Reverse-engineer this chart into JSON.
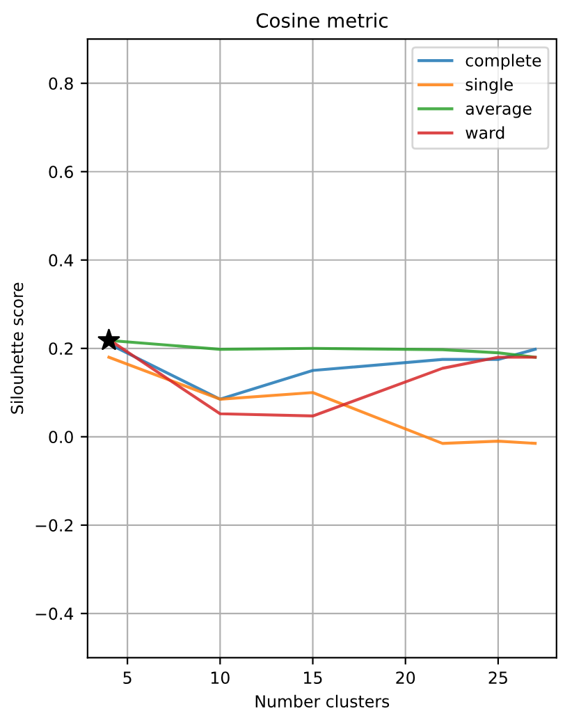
{
  "chart_data": {
    "type": "line",
    "title": "Cosine metric",
    "xlabel": "Number clusters",
    "ylabel": "Silouhette score",
    "x": [
      4,
      10,
      15,
      22,
      25,
      27
    ],
    "series": [
      {
        "name": "complete",
        "color": "#1f77b4",
        "values": [
          0.21,
          0.085,
          0.15,
          0.175,
          0.175,
          0.198
        ]
      },
      {
        "name": "single",
        "color": "#ff7f0e",
        "values": [
          0.18,
          0.085,
          0.1,
          -0.015,
          -0.01,
          -0.015
        ]
      },
      {
        "name": "average",
        "color": "#2ca02c",
        "values": [
          0.218,
          0.198,
          0.2,
          0.197,
          0.19,
          0.18
        ]
      },
      {
        "name": "ward",
        "color": "#d62728",
        "values": [
          0.22,
          0.052,
          0.047,
          0.155,
          0.18,
          0.18
        ]
      },
      {
        "type": "scatter",
        "color": "#000000",
        "marker": "star",
        "x": [
          4
        ],
        "values": [
          0.218
        ]
      }
    ],
    "xlim": [
      2.85,
      28.15
    ],
    "xticks": [
      5,
      10,
      15,
      20,
      25
    ],
    "ylim": [
      -0.5,
      0.9
    ],
    "yticks": [
      {
        "value": -0.4,
        "label": "−0.4"
      },
      {
        "value": -0.2,
        "label": "−0.2"
      },
      {
        "value": 0,
        "label": "0.0"
      },
      0.2,
      0.4,
      0.6,
      0.8
    ],
    "grid": true,
    "legend": "top right"
  }
}
